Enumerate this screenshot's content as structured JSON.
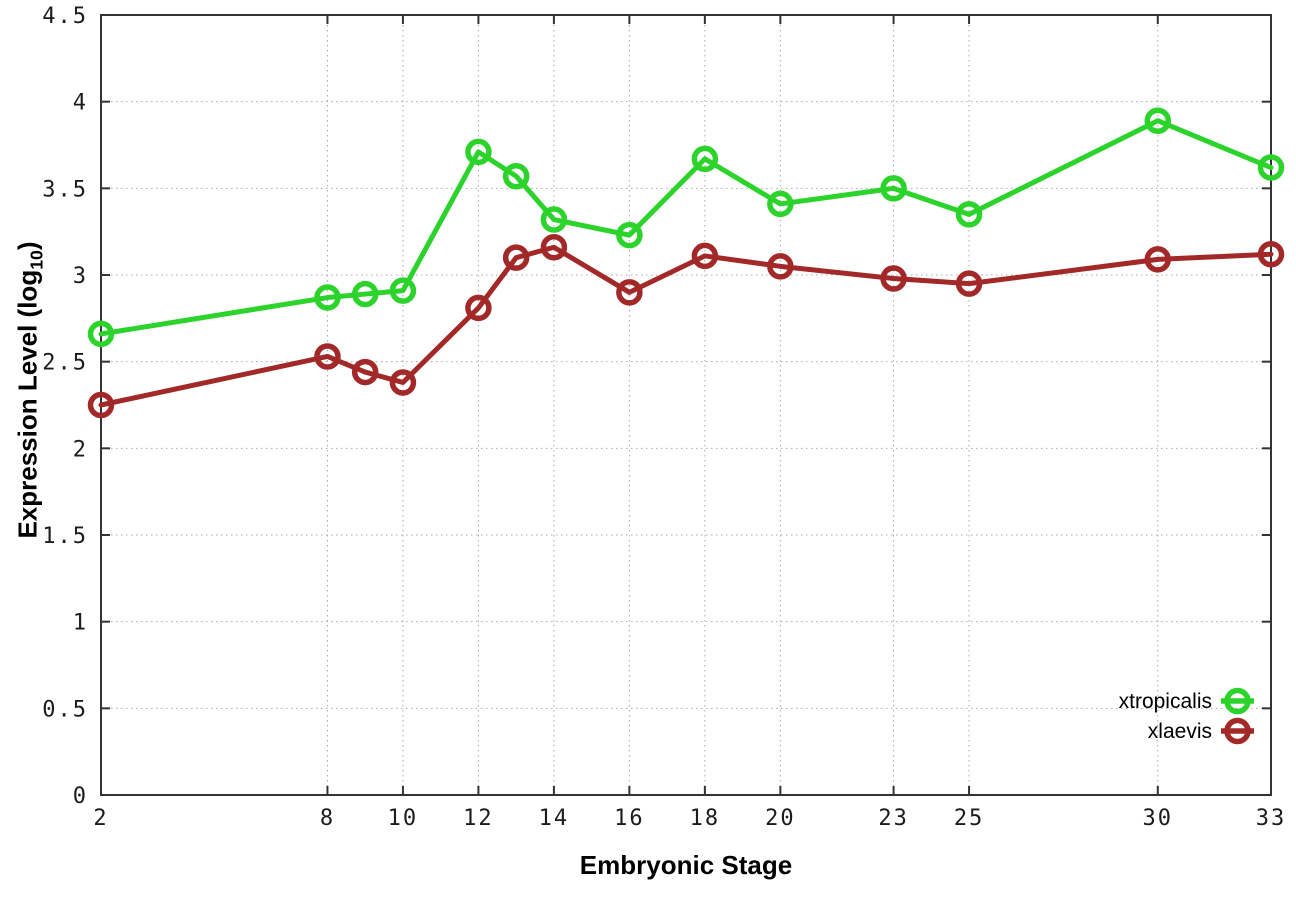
{
  "figure": {
    "xlabel": "Embryonic Stage",
    "ylabel_prefix": "Expression Level (log",
    "ylabel_sub": "10",
    "ylabel_suffix": ")",
    "background_color": "#ffffff",
    "border_color": "#333333",
    "grid_color": "#a9a9a9",
    "tick_text_color": "#1c1c1c"
  },
  "chart_data": {
    "type": "line",
    "title": "",
    "xlabel": "Embryonic Stage",
    "ylabel": "Expression Level (log10)",
    "x": [
      2,
      8,
      9,
      10,
      12,
      13,
      14,
      16,
      18,
      20,
      23,
      25,
      30,
      33
    ],
    "xticks": [
      2,
      8,
      10,
      12,
      14,
      16,
      18,
      20,
      23,
      25,
      30,
      33
    ],
    "yticks": [
      0,
      0.5,
      1,
      1.5,
      2,
      2.5,
      3,
      3.5,
      4,
      4.5
    ],
    "xlim": [
      2,
      33
    ],
    "ylim": [
      0,
      4.5
    ],
    "grid": true,
    "grid_style": "dotted",
    "legend_position": "bottom-right-inside",
    "marker": "open-circle",
    "series": [
      {
        "name": "xtropicalis",
        "color": "#2bd32b",
        "values": [
          2.66,
          2.87,
          2.89,
          2.91,
          3.71,
          3.57,
          3.32,
          3.23,
          3.67,
          3.41,
          3.5,
          3.35,
          3.89,
          3.62
        ]
      },
      {
        "name": "xlaevis",
        "color": "#a32929",
        "values": [
          2.25,
          2.53,
          2.44,
          2.38,
          2.81,
          3.1,
          3.16,
          2.9,
          3.11,
          3.05,
          2.98,
          2.95,
          3.09,
          3.12
        ]
      }
    ]
  }
}
